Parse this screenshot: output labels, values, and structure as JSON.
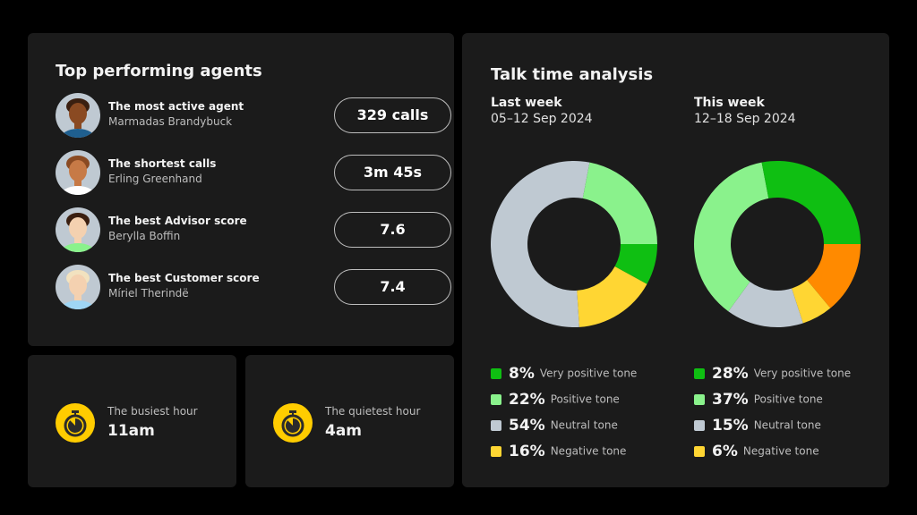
{
  "agents_panel": {
    "title": "Top performing agents",
    "agents": [
      {
        "title": "The most active agent",
        "name": "Marmadas Brandybuck",
        "value": "329 calls"
      },
      {
        "title": "The shortest calls",
        "name": "Erling Greenhand",
        "value": "3m 45s"
      },
      {
        "title": "The best Advisor score",
        "name": "Berylla Boffin",
        "value": "7.6"
      },
      {
        "title": "The best Customer score",
        "name": "Míriel Therindë",
        "value": "7.4"
      }
    ]
  },
  "busiest": {
    "label": "The busiest hour",
    "value": "11am",
    "icon": "stopwatch-icon"
  },
  "quietest": {
    "label": "The quietest hour",
    "value": "4am",
    "icon": "stopwatch-icon"
  },
  "talk": {
    "title": "Talk time analysis"
  },
  "chart_data": [
    {
      "type": "pie",
      "title": "Last week",
      "subtitle": "05–12 Sep 2024",
      "series": [
        {
          "name": "Very positive tone",
          "value": 8,
          "pct": "8%",
          "color": "#0fbf12"
        },
        {
          "name": "Negative tone",
          "value": 16,
          "pct": "16%",
          "color": "#ffd633"
        },
        {
          "name": "Neutral tone",
          "value": 54,
          "pct": "54%",
          "color": "#bfc9d2"
        },
        {
          "name": "Positive tone",
          "value": 22,
          "pct": "22%",
          "color": "#8af28c"
        }
      ],
      "legend": [
        {
          "name": "Very positive tone",
          "pct": "8%",
          "color": "#0fbf12"
        },
        {
          "name": "Positive tone",
          "pct": "22%",
          "color": "#8af28c"
        },
        {
          "name": "Neutral tone",
          "pct": "54%",
          "color": "#bfc9d2"
        },
        {
          "name": "Negative tone",
          "pct": "16%",
          "color": "#ffd633"
        }
      ]
    },
    {
      "type": "pie",
      "title": "This week",
      "subtitle": "12–18 Sep 2024",
      "series": [
        {
          "value": 14,
          "color": "#ff8a00"
        },
        {
          "name": "Negative tone",
          "value": 6,
          "pct": "6%",
          "color": "#ffd633"
        },
        {
          "name": "Neutral tone",
          "value": 15,
          "pct": "15%",
          "color": "#bfc9d2"
        },
        {
          "name": "Positive tone",
          "value": 37,
          "pct": "37%",
          "color": "#8af28c"
        },
        {
          "name": "Very positive tone",
          "value": 28,
          "pct": "28%",
          "color": "#0fbf12"
        }
      ],
      "legend": [
        {
          "name": "Very positive tone",
          "pct": "28%",
          "color": "#0fbf12"
        },
        {
          "name": "Positive tone",
          "pct": "37%",
          "color": "#8af28c"
        },
        {
          "name": "Neutral tone",
          "pct": "15%",
          "color": "#bfc9d2"
        },
        {
          "name": "Negative tone",
          "pct": "6%",
          "color": "#ffd633"
        }
      ]
    }
  ]
}
